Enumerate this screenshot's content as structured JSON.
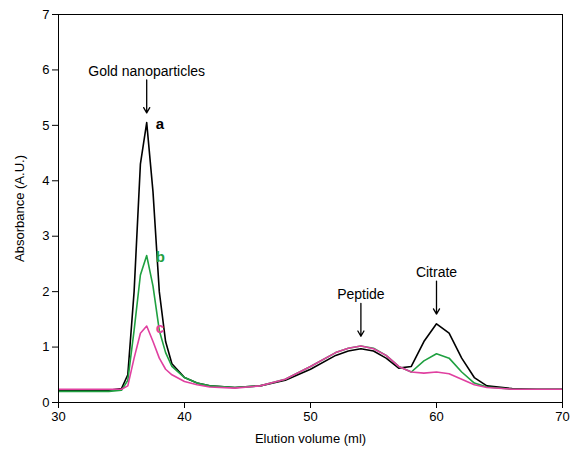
{
  "chart_data": {
    "type": "line",
    "xlabel": "Elution volume (ml)",
    "ylabel": "Absorbance (A.U.)",
    "x": [
      30,
      32,
      34,
      35,
      35.5,
      36,
      36.5,
      37,
      37.5,
      38,
      38.5,
      39,
      40,
      41,
      42,
      44,
      46,
      48,
      50,
      52,
      53,
      54,
      55,
      56,
      57,
      58,
      59,
      60,
      61,
      62,
      63,
      64,
      66,
      68,
      70
    ],
    "series": [
      {
        "name": "a",
        "color": "#000000",
        "values": [
          0.22,
          0.22,
          0.22,
          0.25,
          0.5,
          2.0,
          4.3,
          5.05,
          3.8,
          2.0,
          1.1,
          0.7,
          0.45,
          0.35,
          0.3,
          0.27,
          0.3,
          0.4,
          0.6,
          0.85,
          0.93,
          0.97,
          0.93,
          0.8,
          0.62,
          0.65,
          1.1,
          1.42,
          1.25,
          0.8,
          0.45,
          0.3,
          0.25,
          0.24,
          0.24
        ]
      },
      {
        "name": "b",
        "color": "#1fa040",
        "values": [
          0.2,
          0.2,
          0.2,
          0.22,
          0.4,
          1.3,
          2.3,
          2.65,
          2.1,
          1.3,
          0.9,
          0.65,
          0.45,
          0.35,
          0.3,
          0.27,
          0.3,
          0.42,
          0.65,
          0.9,
          0.98,
          1.02,
          0.98,
          0.85,
          0.65,
          0.55,
          0.75,
          0.88,
          0.8,
          0.55,
          0.35,
          0.28,
          0.24,
          0.24,
          0.24
        ]
      },
      {
        "name": "c",
        "color": "#e040a0",
        "values": [
          0.24,
          0.24,
          0.24,
          0.24,
          0.3,
          0.8,
          1.25,
          1.38,
          1.1,
          0.8,
          0.6,
          0.5,
          0.38,
          0.32,
          0.28,
          0.26,
          0.3,
          0.42,
          0.65,
          0.9,
          0.98,
          1.02,
          0.97,
          0.85,
          0.65,
          0.55,
          0.53,
          0.55,
          0.52,
          0.42,
          0.32,
          0.27,
          0.24,
          0.24,
          0.24
        ]
      }
    ],
    "annotations": [
      {
        "text": "Gold nanoparticles",
        "x": 37
      },
      {
        "text": "Peptide",
        "x": 54
      },
      {
        "text": "Citrate",
        "x": 60
      }
    ],
    "xlim": [
      30,
      70
    ],
    "xticks": [
      30,
      40,
      50,
      60,
      70
    ],
    "ylim": [
      0,
      7
    ],
    "yticks": [
      0,
      1,
      2,
      3,
      4,
      5,
      6,
      7
    ],
    "grid": false
  }
}
